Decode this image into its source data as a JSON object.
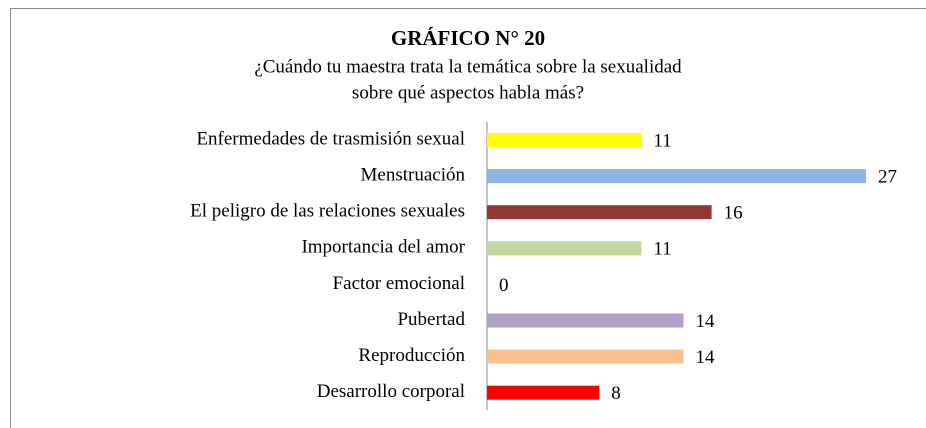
{
  "chart_data": {
    "type": "bar",
    "orientation": "horizontal",
    "title": "GRÁFICO N° 20",
    "subtitle": [
      "¿Cuándo tu maestra trata la temática sobre la sexualidad",
      "sobre qué aspectos habla más?"
    ],
    "categories": [
      "Enfermedades de trasmisión sexual",
      "Menstruación",
      "El peligro de las relaciones sexuales",
      "Importancia del amor",
      "Factor emocional",
      "Pubertad",
      "Reproducción",
      "Desarrollo corporal"
    ],
    "values": [
      11,
      27,
      16,
      11,
      0,
      14,
      14,
      8
    ],
    "colors": [
      "#ffff00",
      "#8db4e2",
      "#953735",
      "#c3d69b",
      "#8064a2",
      "#b1a0c7",
      "#fac090",
      "#ff0000"
    ]
  }
}
